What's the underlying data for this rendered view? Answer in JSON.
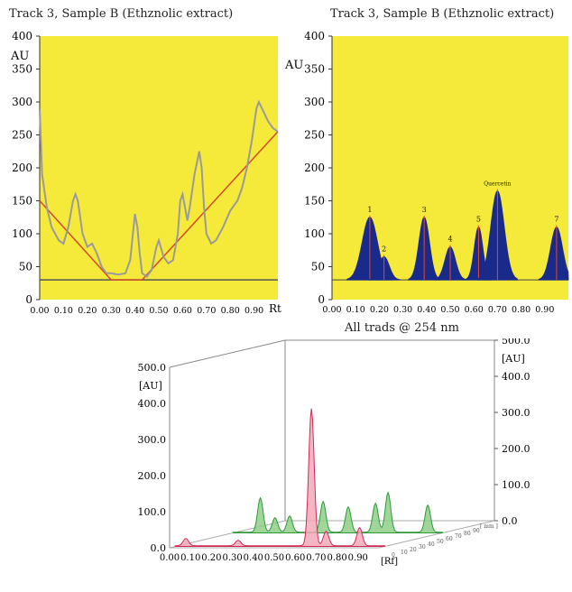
{
  "chart_data": [
    {
      "type": "line",
      "title": "Track 3, Sample B (Ethznolic extract)",
      "ylabel": "AU",
      "xlabel": "Rt",
      "ylim": [
        0,
        400
      ],
      "xlim": [
        0,
        1.0
      ],
      "yticks": [
        "0",
        "50",
        "100",
        "150",
        "200",
        "250",
        "300",
        "350",
        "400"
      ],
      "xticks": [
        "0.00",
        "0.10",
        "0.20",
        "0.30",
        "0.40",
        "0.50",
        "0.60",
        "0.70",
        "0.80",
        "0.90"
      ],
      "background_color": "#f5ea3a",
      "trace_color": "#9a9a9a",
      "baseline_color": "#d24a2a",
      "x": [
        0.0,
        0.01,
        0.03,
        0.05,
        0.08,
        0.1,
        0.12,
        0.14,
        0.15,
        0.16,
        0.18,
        0.2,
        0.22,
        0.24,
        0.26,
        0.28,
        0.3,
        0.33,
        0.36,
        0.38,
        0.4,
        0.41,
        0.42,
        0.43,
        0.45,
        0.47,
        0.49,
        0.5,
        0.52,
        0.54,
        0.56,
        0.58,
        0.59,
        0.6,
        0.62,
        0.63,
        0.65,
        0.67,
        0.68,
        0.69,
        0.7,
        0.72,
        0.74,
        0.77,
        0.8,
        0.83,
        0.85,
        0.87,
        0.89,
        0.91,
        0.92,
        0.94,
        0.96,
        0.98,
        1.0
      ],
      "y": [
        288,
        190,
        140,
        110,
        90,
        85,
        110,
        150,
        160,
        150,
        100,
        80,
        85,
        70,
        50,
        40,
        40,
        38,
        40,
        60,
        130,
        110,
        70,
        40,
        35,
        45,
        80,
        90,
        65,
        55,
        60,
        100,
        150,
        160,
        120,
        140,
        190,
        225,
        200,
        140,
        100,
        85,
        90,
        110,
        135,
        150,
        170,
        200,
        240,
        290,
        300,
        285,
        270,
        260,
        255
      ],
      "baseline": {
        "x": [
          0.0,
          0.3,
          0.43,
          1.0
        ],
        "y": [
          150,
          30,
          30,
          255
        ]
      },
      "threshold": 30
    },
    {
      "type": "area",
      "title": "Track 3, Sample B (Ethznolic extract)",
      "ylabel": "AU",
      "ylim": [
        0,
        400
      ],
      "xlim": [
        0,
        1.0
      ],
      "yticks": [
        "0",
        "50",
        "100",
        "150",
        "200",
        "250",
        "300",
        "350",
        "400"
      ],
      "xticks": [
        "0.00",
        "0.10",
        "0.20",
        "0.30",
        "0.40",
        "0.50",
        "0.60",
        "0.70",
        "0.80",
        "0.90"
      ],
      "background_color": "#f5ea3a",
      "fill_color": "#1a2a8a",
      "peaks": [
        {
          "label": "1",
          "center": 0.16,
          "height": 125,
          "width": 0.032
        },
        {
          "label": "2",
          "center": 0.22,
          "height": 65,
          "width": 0.022
        },
        {
          "label": "3",
          "center": 0.39,
          "height": 125,
          "width": 0.022
        },
        {
          "label": "4",
          "center": 0.5,
          "height": 80,
          "width": 0.022
        },
        {
          "label": "5",
          "center": 0.62,
          "height": 110,
          "width": 0.018
        },
        {
          "label": "Quercetin",
          "center": 0.7,
          "height": 165,
          "width": 0.028
        },
        {
          "label": "7",
          "center": 0.95,
          "height": 110,
          "width": 0.025
        }
      ],
      "baseline": 30
    },
    {
      "type": "line",
      "title": "All trads @ 254 nm",
      "ylabel": "[AU]",
      "xlabel": "[Rf]",
      "depth_label": "[ mm ]",
      "ylim": [
        0,
        500
      ],
      "yticks_left": [
        "0.0",
        "100.0",
        "200.0",
        "300.0",
        "400.0",
        "500.0"
      ],
      "yticks_right": [
        "0.0",
        "100.0",
        "200.0",
        "300.0",
        "400.0",
        "500.0"
      ],
      "xticks": [
        "0.00",
        "0.10",
        "0.20",
        "0.30",
        "0.40",
        "0.50",
        "0.60",
        "0.70",
        "0.80",
        "0.90"
      ],
      "series": [
        {
          "color": "#8fcf88",
          "edge": "#2f9a3a",
          "peaks": [
            {
              "x": 0.13,
              "h": 95
            },
            {
              "x": 0.2,
              "h": 40
            },
            {
              "x": 0.27,
              "h": 45
            },
            {
              "x": 0.43,
              "h": 85
            },
            {
              "x": 0.55,
              "h": 70
            },
            {
              "x": 0.68,
              "h": 80
            },
            {
              "x": 0.74,
              "h": 110
            },
            {
              "x": 0.93,
              "h": 75
            }
          ]
        },
        {
          "color": "#f2a9b8",
          "edge": "#d22a55",
          "peaks": [
            {
              "x": 0.05,
              "h": 20
            },
            {
              "x": 0.3,
              "h": 15
            },
            {
              "x": 0.65,
              "h": 380
            },
            {
              "x": 0.72,
              "h": 40
            },
            {
              "x": 0.88,
              "h": 50
            }
          ]
        }
      ]
    }
  ]
}
